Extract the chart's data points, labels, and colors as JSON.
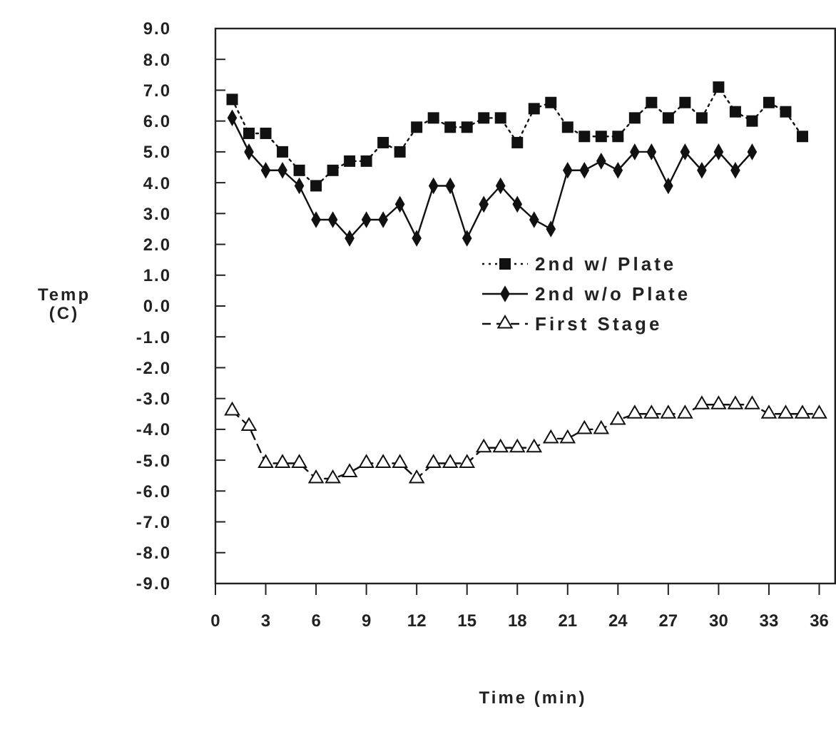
{
  "chart_data": {
    "type": "line",
    "xlabel": "Time (min)",
    "ylabel": "Temp (C)",
    "xlim": [
      0,
      37
    ],
    "ylim": [
      -9,
      9
    ],
    "xticks": [
      0,
      3,
      6,
      9,
      12,
      15,
      18,
      21,
      24,
      27,
      30,
      33,
      36
    ],
    "yticks": [
      {
        "value": 9,
        "label": "9.0"
      },
      {
        "value": 8,
        "label": "8.0"
      },
      {
        "value": 7,
        "label": "7.0"
      },
      {
        "value": 6,
        "label": "6.0"
      },
      {
        "value": 5,
        "label": "5.0"
      },
      {
        "value": 4,
        "label": "4.0"
      },
      {
        "value": 3,
        "label": "3.0"
      },
      {
        "value": 2,
        "label": "2.0"
      },
      {
        "value": 1,
        "label": "1.0"
      },
      {
        "value": 0,
        "label": "0.0"
      },
      {
        "value": -1,
        "label": "-1.0"
      },
      {
        "value": -2,
        "label": "-2.0"
      },
      {
        "value": -3,
        "label": "-3.0"
      },
      {
        "value": -4,
        "label": "-4.0"
      },
      {
        "value": -5,
        "label": "-5.0"
      },
      {
        "value": -6,
        "label": "-6.0"
      },
      {
        "value": -7,
        "label": "-7.0"
      },
      {
        "value": -8,
        "label": "-8.0"
      },
      {
        "value": -9,
        "label": "-9.0"
      }
    ],
    "grid": false,
    "legend": "right",
    "series": [
      {
        "name": "2nd w/ Plate",
        "color": "#111111",
        "marker": "square",
        "line_style": "dotted",
        "x": [
          1,
          2,
          3,
          4,
          5,
          6,
          7,
          8,
          9,
          10,
          11,
          12,
          13,
          14,
          15,
          16,
          17,
          18,
          19,
          20,
          21,
          22,
          23,
          24,
          25,
          26,
          27,
          28,
          29,
          30,
          31,
          32,
          33,
          34,
          35
        ],
        "values": [
          6.7,
          5.6,
          5.6,
          5.0,
          4.4,
          3.9,
          4.4,
          4.7,
          4.7,
          5.3,
          5.0,
          5.8,
          6.1,
          5.8,
          5.8,
          6.1,
          6.1,
          5.3,
          6.4,
          6.6,
          5.8,
          5.5,
          5.5,
          5.5,
          6.1,
          6.6,
          6.1,
          6.6,
          6.1,
          7.1,
          6.3,
          6.0,
          6.6,
          6.3,
          5.5
        ]
      },
      {
        "name": "2nd w/o Plate",
        "color": "#111111",
        "marker": "diamond",
        "line_style": "solid",
        "x": [
          1,
          2,
          3,
          4,
          5,
          6,
          7,
          8,
          9,
          10,
          11,
          12,
          13,
          14,
          15,
          16,
          17,
          18,
          19,
          20,
          21,
          22,
          23,
          24,
          25,
          26,
          27,
          28,
          29,
          30,
          31,
          32
        ],
        "values": [
          6.1,
          5.0,
          4.4,
          4.4,
          3.9,
          2.8,
          2.8,
          2.2,
          2.8,
          2.8,
          3.3,
          2.2,
          3.9,
          3.9,
          2.2,
          3.3,
          3.9,
          3.3,
          2.8,
          2.5,
          4.4,
          4.4,
          4.7,
          4.4,
          5.0,
          5.0,
          3.9,
          5.0,
          4.4,
          5.0,
          4.4,
          5.0
        ]
      },
      {
        "name": "First Stage",
        "color": "#111111",
        "marker": "triangle",
        "line_style": "dashed",
        "x": [
          1,
          2,
          3,
          4,
          5,
          6,
          7,
          8,
          9,
          10,
          11,
          12,
          13,
          14,
          15,
          16,
          17,
          18,
          19,
          20,
          21,
          22,
          23,
          24,
          25,
          26,
          27,
          28,
          29,
          30,
          31,
          32,
          33,
          34,
          35,
          36
        ],
        "values": [
          -3.4,
          -3.9,
          -5.1,
          -5.1,
          -5.1,
          -5.6,
          -5.6,
          -5.4,
          -5.1,
          -5.1,
          -5.1,
          -5.6,
          -5.1,
          -5.1,
          -5.1,
          -4.6,
          -4.6,
          -4.6,
          -4.6,
          -4.3,
          -4.3,
          -4.0,
          -4.0,
          -3.7,
          -3.5,
          -3.5,
          -3.5,
          -3.5,
          -3.2,
          -3.2,
          -3.2,
          -3.2,
          -3.5,
          -3.5,
          -3.5,
          -3.5
        ]
      }
    ]
  }
}
